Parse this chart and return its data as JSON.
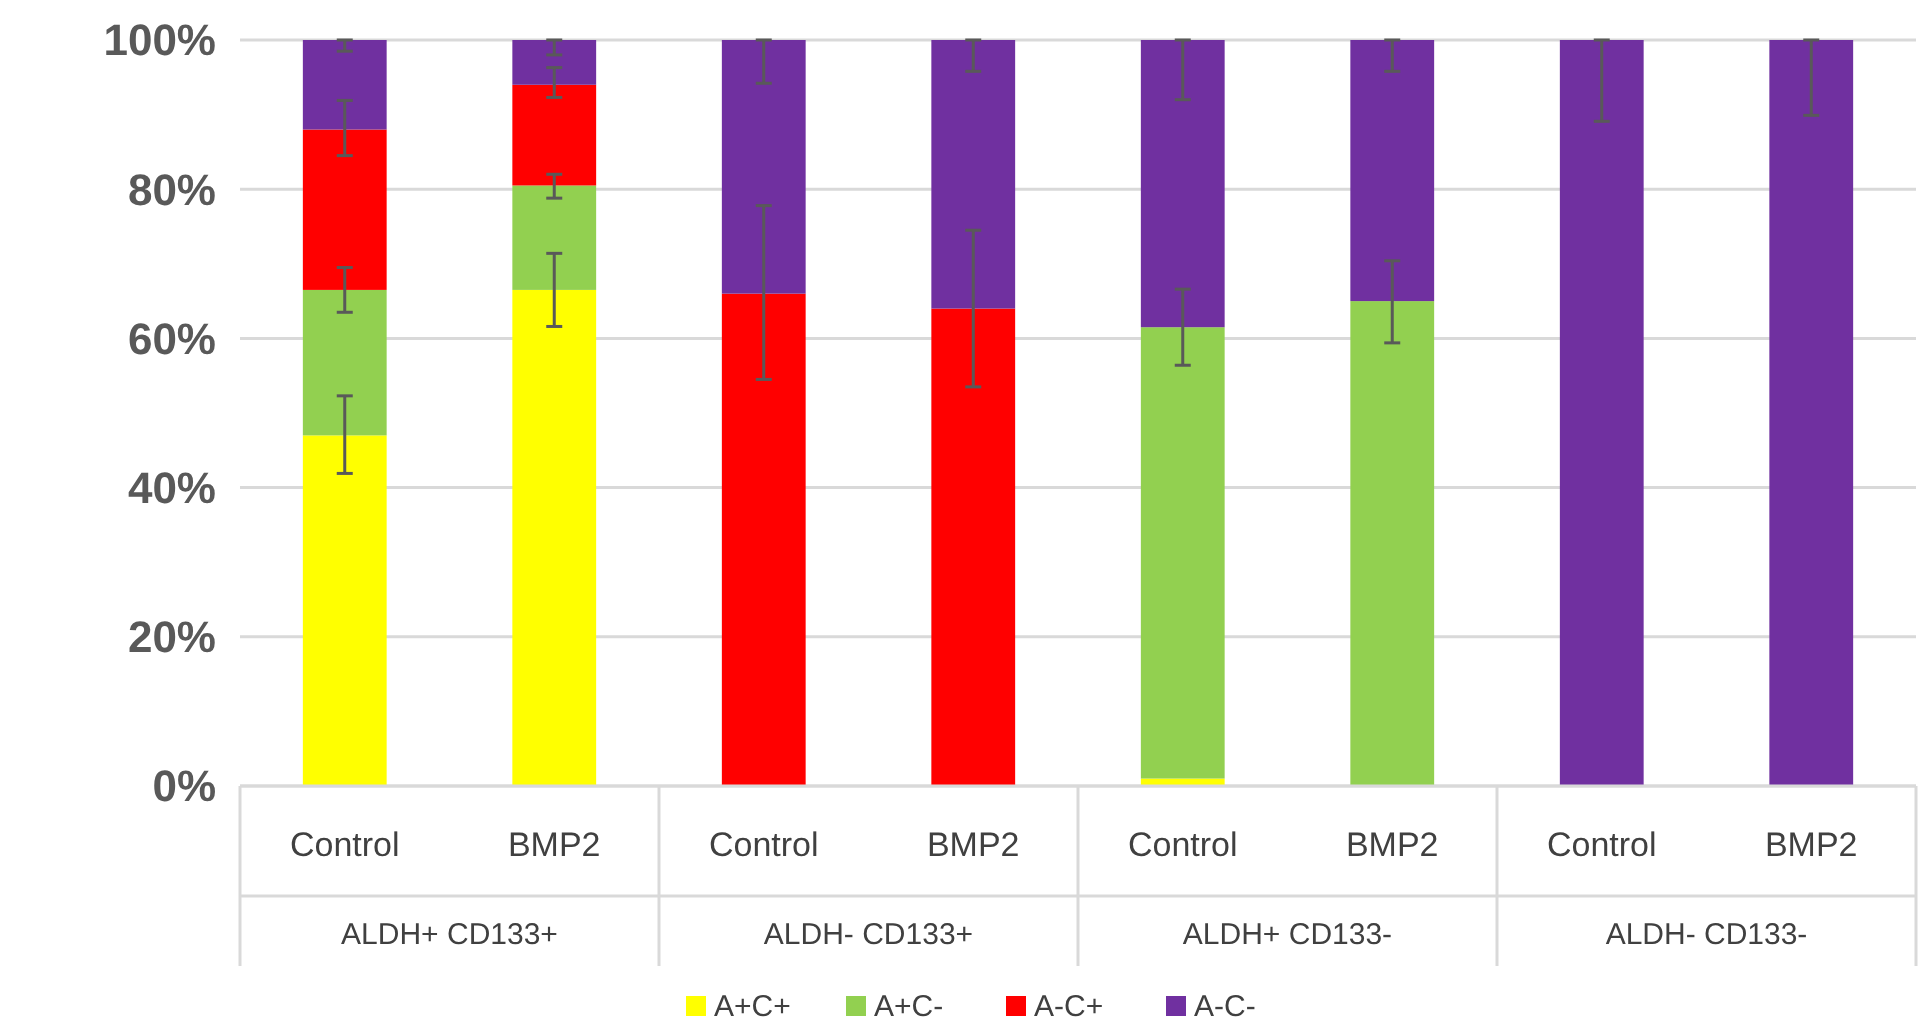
{
  "chart_data": {
    "type": "bar",
    "stacked": true,
    "categories": [
      "Control",
      "BMP2",
      "Control",
      "BMP2",
      "Control",
      "BMP2",
      "Control",
      "BMP2"
    ],
    "annotations": [
      "ALDH+ CD133+",
      "ALDH- CD133+",
      "ALDH+ CD133-",
      "ALDH- CD133-"
    ],
    "series": [
      {
        "name": "A+C+",
        "color": "#ffff00",
        "values": [
          47,
          66.5,
          0,
          0,
          1,
          0,
          0,
          0
        ],
        "errors": [
          [
            41.9,
            52.3
          ],
          [
            61.6,
            71.4
          ],
          null,
          null,
          null,
          null,
          null,
          null
        ]
      },
      {
        "name": "A+C-",
        "color": "#92d050",
        "values": [
          19.5,
          14,
          0,
          0,
          60.5,
          65,
          0,
          0
        ],
        "errors": [
          [
            63.5,
            69.5
          ],
          [
            78.8,
            82
          ],
          null,
          null,
          [
            56.4,
            66.6
          ],
          [
            59.4,
            70.4
          ],
          null,
          null
        ]
      },
      {
        "name": "A-C+",
        "color": "#ff0000",
        "values": [
          21.5,
          13.5,
          66,
          64,
          0,
          0,
          0,
          0
        ],
        "errors": [
          [
            84.5,
            91.9
          ],
          [
            92.3,
            96.3
          ],
          [
            54.5,
            77.8
          ],
          [
            53.5,
            74.5
          ],
          null,
          null,
          null,
          null
        ]
      },
      {
        "name": "A-C-",
        "color": "#7030a0",
        "values": [
          12,
          6,
          34,
          36,
          38.5,
          35,
          100,
          100
        ],
        "errors": [
          [
            98.5,
            100
          ],
          [
            98,
            100
          ],
          [
            94.2,
            100
          ],
          [
            95.8,
            100
          ],
          [
            92,
            100
          ],
          [
            95.8,
            100
          ],
          [
            89.1,
            100
          ],
          [
            89.9,
            100
          ]
        ]
      }
    ],
    "ylim": [
      0,
      100
    ],
    "yticks": [
      {
        "value": 0,
        "label": "0%"
      },
      {
        "value": 20,
        "label": "20%"
      },
      {
        "value": 40,
        "label": "40%"
      },
      {
        "value": 60,
        "label": "60%"
      },
      {
        "value": 80,
        "label": "80%"
      },
      {
        "value": 100,
        "label": "100%"
      }
    ],
    "grid": "y",
    "legend": "bottom"
  }
}
